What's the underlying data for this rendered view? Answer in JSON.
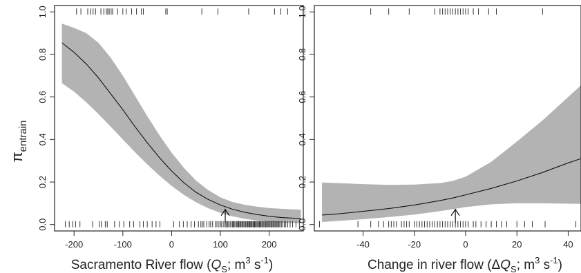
{
  "y_axis_label": {
    "symbol": "π",
    "subscript": "entrain"
  },
  "chart_data": [
    {
      "type": "line",
      "xlabel_parts": [
        "Sacramento River flow (",
        "Q",
        "S",
        "; m",
        "3",
        " s",
        "-1",
        ")"
      ],
      "xlim": [
        -240,
        270
      ],
      "ylim": [
        -0.03,
        1.03
      ],
      "x_ticks": [
        -200,
        -100,
        0,
        100,
        200
      ],
      "y_ticks": [
        0.0,
        0.2,
        0.4,
        0.6,
        0.8,
        1.0
      ],
      "y_tick_labels": [
        "0.0",
        "0.2",
        "0.4",
        "0.6",
        "0.8",
        "1.0"
      ],
      "grid": false,
      "series": [
        {
          "x": [
            -225,
            -200,
            -175,
            -150,
            -125,
            -100,
            -75,
            -50,
            -25,
            0,
            25,
            50,
            75,
            100,
            125,
            150,
            175,
            200,
            225,
            265
          ],
          "y": [
            0.855,
            0.81,
            0.755,
            0.69,
            0.615,
            0.54,
            0.46,
            0.385,
            0.315,
            0.252,
            0.197,
            0.152,
            0.118,
            0.092,
            0.072,
            0.058,
            0.047,
            0.039,
            0.033,
            0.028
          ],
          "lower": [
            0.665,
            0.625,
            0.575,
            0.52,
            0.46,
            0.4,
            0.34,
            0.283,
            0.23,
            0.182,
            0.14,
            0.105,
            0.077,
            0.055,
            0.039,
            0.027,
            0.019,
            0.013,
            0.009,
            0.006
          ],
          "upper": [
            0.945,
            0.925,
            0.9,
            0.855,
            0.785,
            0.7,
            0.605,
            0.51,
            0.42,
            0.338,
            0.267,
            0.207,
            0.162,
            0.128,
            0.106,
            0.093,
            0.084,
            0.078,
            0.074,
            0.07
          ]
        }
      ],
      "rug_top": [
        -195,
        -186,
        -172,
        -166,
        -161,
        -156,
        -145,
        -139,
        -134,
        -131,
        -128,
        -124,
        -121,
        -111,
        -100,
        -93,
        -82,
        -72,
        -62,
        -58,
        -12,
        -9,
        62,
        95,
        158,
        211,
        224,
        238
      ],
      "rug_bottom": [
        -218,
        -210,
        -203,
        -197,
        -188,
        -162,
        -148,
        -144,
        -136,
        -132,
        -117,
        -107,
        -98,
        -86,
        -78,
        -65,
        -58,
        -50,
        -40,
        -32,
        -24,
        4,
        16,
        24,
        32,
        40,
        47,
        55,
        60,
        63,
        66,
        72,
        77,
        80,
        84,
        90,
        93,
        97,
        101,
        103,
        107,
        110,
        112,
        115,
        117,
        120,
        122,
        125,
        127,
        128,
        130,
        133,
        135,
        137,
        138,
        140,
        142,
        144,
        146,
        148,
        150,
        152,
        154,
        156,
        158,
        159,
        160,
        162,
        163,
        165,
        167,
        169,
        170,
        171,
        173,
        175,
        177,
        178,
        180,
        182,
        183,
        185,
        187,
        189,
        191,
        193,
        195,
        196,
        198,
        200,
        202,
        204,
        206,
        208,
        210,
        212,
        214,
        216,
        218,
        220,
        222,
        225,
        228,
        231,
        234,
        238,
        243,
        248,
        255,
        262
      ],
      "arrow_x": 110
    },
    {
      "type": "line",
      "xlabel_parts": [
        "Change in river flow (Δ",
        "Q",
        "S",
        "; m",
        "3",
        " s",
        "-1",
        ")"
      ],
      "xlim": [
        -59,
        45
      ],
      "ylim": [
        -0.03,
        1.03
      ],
      "x_ticks": [
        -40,
        -20,
        0,
        20,
        40
      ],
      "y_ticks": [
        0.0,
        0.2,
        0.4,
        0.6,
        0.8,
        1.0
      ],
      "y_tick_labels": [
        "0.0",
        "0.2",
        "0.4",
        "0.6",
        "0.8",
        "1.0"
      ],
      "grid": false,
      "series": [
        {
          "x": [
            -56,
            -50,
            -40,
            -30,
            -20,
            -10,
            -5,
            0,
            10,
            20,
            30,
            40,
            45
          ],
          "y": [
            0.045,
            0.05,
            0.062,
            0.075,
            0.092,
            0.113,
            0.125,
            0.14,
            0.17,
            0.205,
            0.245,
            0.29,
            0.31
          ],
          "lower": [
            0.012,
            0.017,
            0.025,
            0.035,
            0.047,
            0.063,
            0.072,
            0.082,
            0.095,
            0.1,
            0.1,
            0.098,
            0.097
          ],
          "upper": [
            0.198,
            0.195,
            0.19,
            0.187,
            0.188,
            0.195,
            0.205,
            0.225,
            0.295,
            0.39,
            0.49,
            0.6,
            0.655
          ]
        }
      ],
      "rug_top": [
        -37,
        -30,
        -22,
        -12,
        -10,
        -9,
        -8,
        -7,
        -6,
        -5,
        -4,
        -3,
        -2,
        -1,
        0,
        1,
        3,
        5,
        9,
        12,
        30
      ],
      "rug_bottom": [
        -57,
        -42,
        -37,
        -34,
        -32,
        -30,
        -29,
        -28,
        -27,
        -25,
        -24,
        -23,
        -22,
        -20,
        -19,
        -18,
        -17,
        -16,
        -15,
        -14,
        -13,
        -12,
        -11,
        -10,
        -9,
        -8,
        -7,
        -6,
        -5,
        -4,
        -3,
        -2,
        -1,
        0,
        1,
        3,
        4,
        6,
        8,
        10,
        12,
        14,
        16,
        20,
        23,
        26,
        31,
        43
      ],
      "arrow_x": -4
    }
  ]
}
